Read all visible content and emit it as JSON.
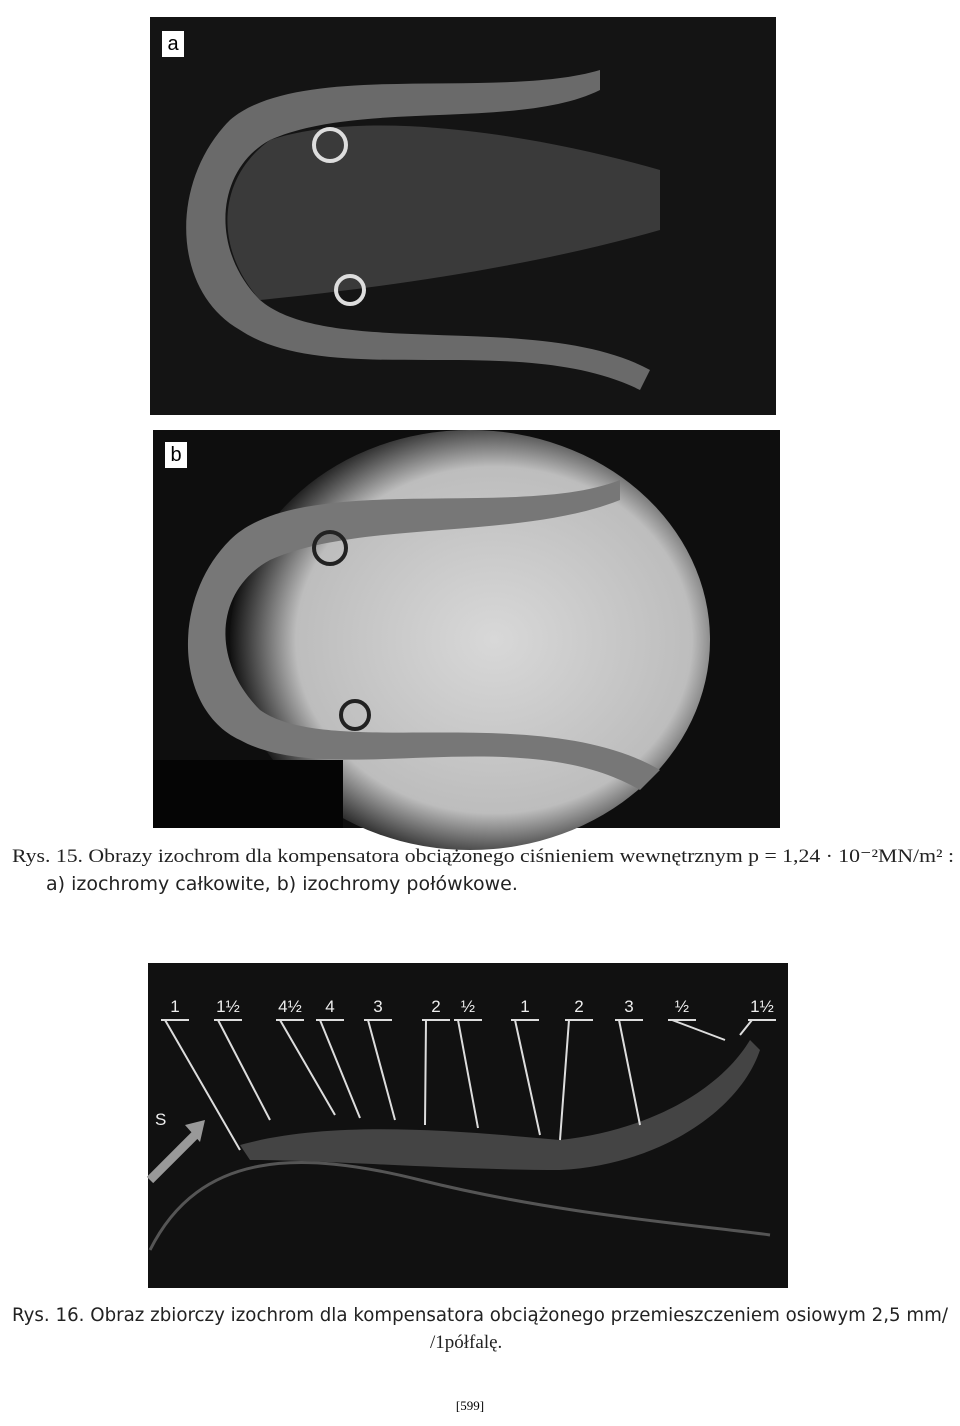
{
  "figure_15": {
    "panel_a_label": "a",
    "panel_b_label": "b",
    "caption_line_1": "Rys. 15. Obrazy izochrom dla kompensatora obciążonego ciśnieniem wewnętrznym p = 1,24 · 10⁻²MN/m² :",
    "caption_line_2": "a) izochromy całkowite, b) izochromy połówkowe."
  },
  "figure_16": {
    "fringe_labels": [
      "1",
      "1½",
      "4½",
      "4",
      "3",
      "2",
      "½",
      "1",
      "2",
      "3",
      "½",
      "1½"
    ],
    "s_label": "S",
    "caption_line_1": "Rys. 16. Obraz zbiorczy izochrom dla kompensatora obciążonego przemieszczeniem osiowym 2,5 mm/",
    "caption_line_2": "/1półfalę."
  },
  "page_number": "[599]"
}
